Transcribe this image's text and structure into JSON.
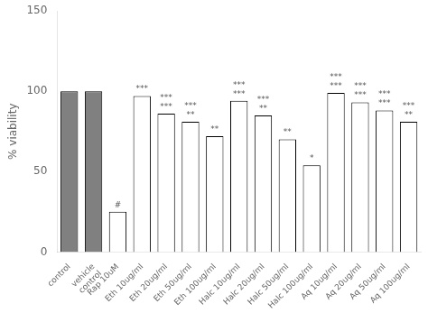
{
  "chart_data": {
    "type": "bar",
    "categories": [
      "control",
      "vehicle\ncontrol",
      "Rap 10uM",
      "Eth 10ug/ml",
      "Eth 20ug/ml",
      "Eth 50ug/ml",
      "Eth 100ug/ml",
      "Halc 10ug/ml",
      "Halc 20ug/ml",
      "Halc 50ug/ml",
      "Halc 100ug/ml",
      "Aq 10ug/ml",
      "Aq 20ug/ml",
      "Aq 50ug/ml",
      "Aq 100ug/ml"
    ],
    "values": [
      100,
      100,
      25,
      97,
      86,
      81,
      72,
      94,
      85,
      70,
      54,
      99,
      93,
      88,
      81
    ],
    "annotations": [
      null,
      null,
      "#",
      "***",
      "***\n***",
      "***\n**",
      "**",
      "***\n***",
      "***\n**",
      "**",
      "*",
      "***\n***",
      "***\n***",
      "***\n***",
      "***\n**"
    ],
    "colors": [
      "gray",
      "gray",
      "white",
      "white",
      "white",
      "white",
      "white",
      "white",
      "white",
      "white",
      "white",
      "white",
      "white",
      "white",
      "white"
    ],
    "ylabel": "% viability",
    "ylim": [
      0,
      150
    ],
    "yticks": [
      0,
      50,
      100,
      150
    ],
    "grid": false
  }
}
